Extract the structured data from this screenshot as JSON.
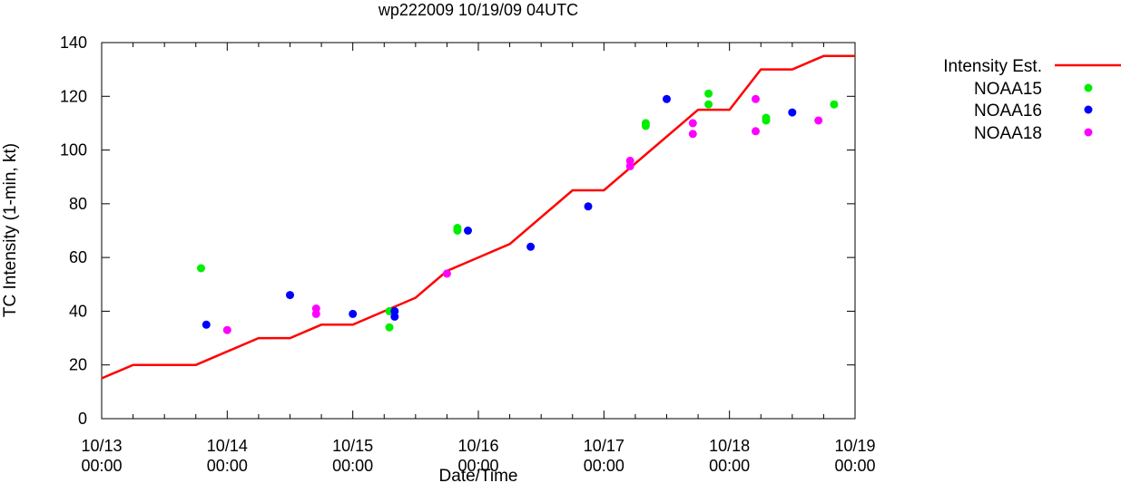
{
  "chart_data": {
    "type": "scatter",
    "title": "wp222009 10/19/09 04UTC",
    "xlabel": "Date/Time",
    "ylabel": "TC Intensity (1-min, kt)",
    "ylim": [
      0,
      140
    ],
    "yticks": [
      0,
      20,
      40,
      60,
      80,
      100,
      120,
      140
    ],
    "xlim": [
      "10/13 00:00",
      "10/19 00:00"
    ],
    "xticks": [
      {
        "line1": "10/13",
        "line2": "00:00",
        "day": 13
      },
      {
        "line1": "10/14",
        "line2": "00:00",
        "day": 14
      },
      {
        "line1": "10/15",
        "line2": "00:00",
        "day": 15
      },
      {
        "line1": "10/16",
        "line2": "00:00",
        "day": 16
      },
      {
        "line1": "10/17",
        "line2": "00:00",
        "day": 17
      },
      {
        "line1": "10/18",
        "line2": "00:00",
        "day": 18
      },
      {
        "line1": "10/19",
        "line2": "00:00",
        "day": 19
      }
    ],
    "grid": false,
    "legend_position": "right",
    "series": [
      {
        "name": "Intensity Est.",
        "kind": "line",
        "color": "#ff0000",
        "points": [
          {
            "t": "10/13 00:00",
            "v": 15
          },
          {
            "t": "10/13 06:00",
            "v": 20
          },
          {
            "t": "10/13 18:00",
            "v": 20
          },
          {
            "t": "10/14 06:00",
            "v": 30
          },
          {
            "t": "10/14 12:00",
            "v": 30
          },
          {
            "t": "10/14 18:00",
            "v": 35
          },
          {
            "t": "10/15 00:00",
            "v": 35
          },
          {
            "t": "10/15 12:00",
            "v": 45
          },
          {
            "t": "10/15 18:00",
            "v": 55
          },
          {
            "t": "10/16 06:00",
            "v": 65
          },
          {
            "t": "10/16 18:00",
            "v": 85
          },
          {
            "t": "10/17 00:00",
            "v": 85
          },
          {
            "t": "10/17 18:00",
            "v": 115
          },
          {
            "t": "10/18 00:00",
            "v": 115
          },
          {
            "t": "10/18 06:00",
            "v": 130
          },
          {
            "t": "10/18 12:00",
            "v": 130
          },
          {
            "t": "10/18 18:00",
            "v": 135
          },
          {
            "t": "10/19 00:00",
            "v": 135
          }
        ]
      },
      {
        "name": "NOAA15",
        "kind": "points",
        "color": "#00ee00",
        "points": [
          {
            "t": "10/13 19:00",
            "v": 56
          },
          {
            "t": "10/15 07:00",
            "v": 40
          },
          {
            "t": "10/15 07:00",
            "v": 34
          },
          {
            "t": "10/15 20:00",
            "v": 71
          },
          {
            "t": "10/15 20:00",
            "v": 70
          },
          {
            "t": "10/17 08:00",
            "v": 110
          },
          {
            "t": "10/17 08:00",
            "v": 109
          },
          {
            "t": "10/17 20:00",
            "v": 121
          },
          {
            "t": "10/17 20:00",
            "v": 117
          },
          {
            "t": "10/18 07:00",
            "v": 112
          },
          {
            "t": "10/18 07:00",
            "v": 111
          },
          {
            "t": "10/18 20:00",
            "v": 117
          }
        ]
      },
      {
        "name": "NOAA16",
        "kind": "points",
        "color": "#0000ff",
        "points": [
          {
            "t": "10/13 20:00",
            "v": 35
          },
          {
            "t": "10/14 12:00",
            "v": 46
          },
          {
            "t": "10/15 00:00",
            "v": 39
          },
          {
            "t": "10/15 08:00",
            "v": 40
          },
          {
            "t": "10/15 08:00",
            "v": 38
          },
          {
            "t": "10/15 22:00",
            "v": 70
          },
          {
            "t": "10/16 10:00",
            "v": 64
          },
          {
            "t": "10/16 21:00",
            "v": 79
          },
          {
            "t": "10/17 12:00",
            "v": 119
          },
          {
            "t": "10/18 12:00",
            "v": 114
          }
        ]
      },
      {
        "name": "NOAA18",
        "kind": "points",
        "color": "#ff00ff",
        "points": [
          {
            "t": "10/14 00:00",
            "v": 33
          },
          {
            "t": "10/14 17:00",
            "v": 41
          },
          {
            "t": "10/14 17:00",
            "v": 39
          },
          {
            "t": "10/15 18:00",
            "v": 54
          },
          {
            "t": "10/17 05:00",
            "v": 96
          },
          {
            "t": "10/17 05:00",
            "v": 94
          },
          {
            "t": "10/17 17:00",
            "v": 110
          },
          {
            "t": "10/17 17:00",
            "v": 106
          },
          {
            "t": "10/18 05:00",
            "v": 119
          },
          {
            "t": "10/18 05:00",
            "v": 107
          },
          {
            "t": "10/18 17:00",
            "v": 111
          }
        ]
      }
    ]
  }
}
